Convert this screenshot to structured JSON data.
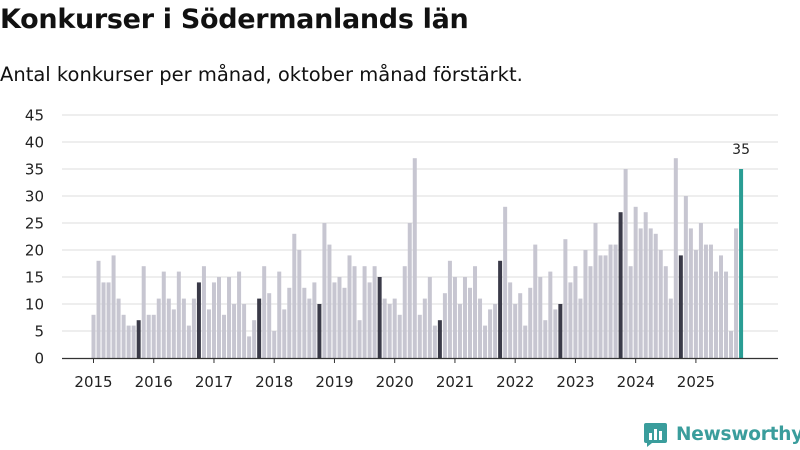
{
  "title": "Konkurser i Södermanlands län",
  "subtitle": "Antal konkurser per månad, oktober månad förstärkt.",
  "brand": {
    "name": "Newsworthy",
    "icon": "newsworthy-logo-icon"
  },
  "colors": {
    "bar": "#c7c6d1",
    "highlight": "#3a3a48",
    "latest": "#2a9d94",
    "grid": "#dedede",
    "axis": "#333333"
  },
  "chart_data": {
    "type": "bar",
    "title": "Konkurser i Södermanlands län",
    "xlabel": "",
    "ylabel": "",
    "ylim": [
      0,
      45
    ],
    "yticks": [
      0,
      5,
      10,
      15,
      20,
      25,
      30,
      35,
      40,
      45
    ],
    "start": "2015-01",
    "x_tick_labels": [
      "2015",
      "2016",
      "2017",
      "2018",
      "2019",
      "2020",
      "2021",
      "2022",
      "2023",
      "2024",
      "2025"
    ],
    "highlight_month": "October",
    "value_label": {
      "month": "2025-10",
      "value": 35,
      "text": "35"
    },
    "values": [
      8,
      18,
      14,
      14,
      19,
      11,
      8,
      6,
      6,
      7,
      17,
      8,
      8,
      11,
      16,
      11,
      9,
      16,
      11,
      6,
      11,
      14,
      17,
      9,
      14,
      15,
      8,
      15,
      10,
      16,
      10,
      4,
      7,
      11,
      17,
      12,
      5,
      16,
      9,
      13,
      23,
      20,
      13,
      11,
      14,
      10,
      25,
      21,
      14,
      15,
      13,
      19,
      17,
      7,
      17,
      14,
      17,
      15,
      11,
      10,
      11,
      8,
      17,
      25,
      37,
      8,
      11,
      15,
      6,
      7,
      12,
      18,
      15,
      10,
      15,
      13,
      17,
      11,
      6,
      9,
      10,
      18,
      28,
      14,
      10,
      12,
      6,
      13,
      21,
      15,
      7,
      16,
      9,
      10,
      22,
      14,
      17,
      11,
      20,
      17,
      25,
      19,
      19,
      21,
      21,
      27,
      35,
      17,
      28,
      24,
      27,
      24,
      23,
      20,
      17,
      11,
      37,
      19,
      30,
      24,
      20,
      25,
      21,
      21,
      16,
      19,
      16,
      5,
      24,
      35
    ]
  }
}
